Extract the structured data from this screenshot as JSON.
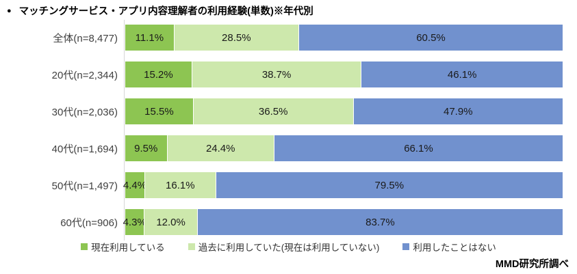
{
  "title": "マッチングサービス・アプリ内容理解者の利用経験(単数)※年代別",
  "title_bullet": "●",
  "source": "MMD研究所調べ",
  "chart_data": {
    "type": "bar",
    "stacked": true,
    "orientation": "horizontal",
    "value_suffix": "%",
    "xlim": [
      0,
      100
    ],
    "grid": false,
    "legend_position": "bottom",
    "categories": [
      "全体(n=8,477)",
      "20代(n=2,344)",
      "30代(n=2,036)",
      "40代(n=1,694)",
      "50代(n=1,497)",
      "60代(n=906)"
    ],
    "series": [
      {
        "name": "現在利用している",
        "color": "#8DC552",
        "values": [
          11.1,
          15.2,
          15.5,
          9.5,
          4.4,
          4.3
        ],
        "labels": [
          "11.1%",
          "15.2%",
          "15.5%",
          "9.5%",
          "4.4%",
          "4.3%"
        ]
      },
      {
        "name": "過去に利用していた(現在は利用していない)",
        "color": "#CDE8AC",
        "values": [
          28.5,
          38.7,
          36.5,
          24.4,
          16.1,
          12.0
        ],
        "labels": [
          "28.5%",
          "38.7%",
          "36.5%",
          "24.4%",
          "16.1%",
          "12.0%"
        ]
      },
      {
        "name": "利用したことはない",
        "color": "#7191CE",
        "values": [
          60.5,
          46.1,
          47.9,
          66.1,
          79.5,
          83.7
        ],
        "labels": [
          "60.5%",
          "46.1%",
          "47.9%",
          "66.1%",
          "79.5%",
          "83.7%"
        ]
      }
    ]
  }
}
